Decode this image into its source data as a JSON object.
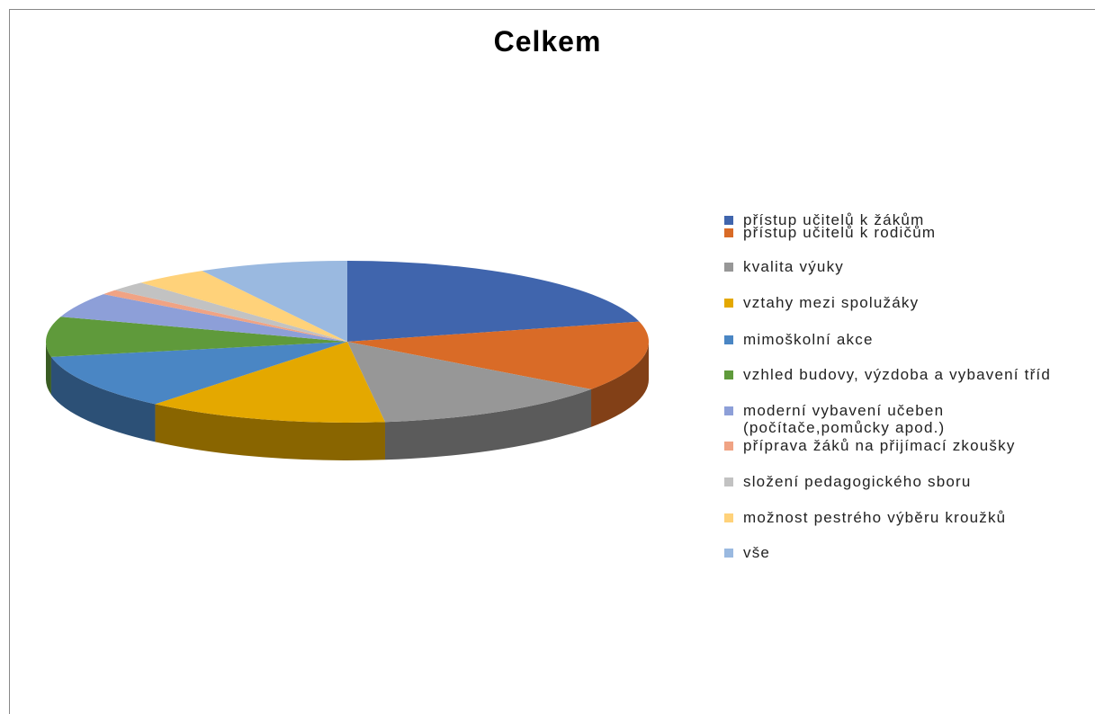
{
  "chart_data": {
    "type": "pie3d",
    "title": "Celkem",
    "categories": [
      "přístup učitelů k žákům",
      "přístup učitelů k rodičům",
      "kvalita výuky",
      "vztahy mezi spolužáky",
      "mimoškolní akce",
      "vzhled budovy, výzdoba a vybavení tříd",
      "moderní vybavení učeben (počítače,pomůcky apod.)",
      "příprava žáků na přijímací zkoušky",
      "složení pedagogického sboru",
      "možnost pestrého výběru kroužků",
      "vše"
    ],
    "values": [
      21,
      14,
      13,
      13,
      11,
      8,
      5,
      1,
      2,
      4,
      8
    ],
    "colors": [
      "#4065ad",
      "#d96b27",
      "#979797",
      "#e4a800",
      "#4a86c4",
      "#5f9a3b",
      "#8d9fd8",
      "#f0a384",
      "#c2c2c2",
      "#ffd27a",
      "#9ab9e0"
    ],
    "legend": "right"
  }
}
